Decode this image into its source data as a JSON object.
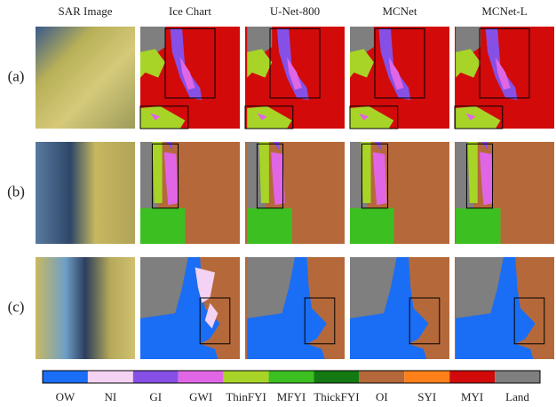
{
  "columns": [
    "SAR Image",
    "Ice Chart",
    "U-Net-800",
    "MCNet",
    "MCNet-L"
  ],
  "rows": [
    "(a)",
    "(b)",
    "(c)"
  ],
  "legend": [
    {
      "name": "OW",
      "color": "#1a6ef5"
    },
    {
      "name": "NI",
      "color": "#f3d2f3"
    },
    {
      "name": "GI",
      "color": "#8650e6"
    },
    {
      "name": "GWI",
      "color": "#e066e6"
    },
    {
      "name": "ThinFYI",
      "color": "#a8d428"
    },
    {
      "name": "MFYI",
      "color": "#3cc021"
    },
    {
      "name": "ThickFYI",
      "color": "#137a13"
    },
    {
      "name": "OI",
      "color": "#b5693a"
    },
    {
      "name": "SYI",
      "color": "#ff8019"
    },
    {
      "name": "MYI",
      "color": "#d20a0a"
    },
    {
      "name": "Land",
      "color": "#7f7f7f"
    }
  ]
}
